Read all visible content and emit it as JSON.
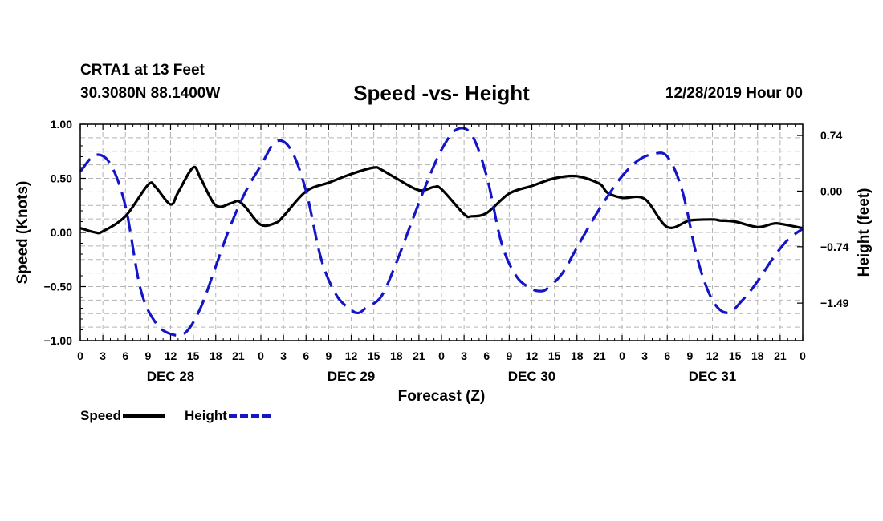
{
  "header": {
    "station": "CRTA1 at 13 Feet",
    "coords": "30.3080N 88.1400W",
    "title": "Speed -vs- Height",
    "run_time": "12/28/2019 Hour 00"
  },
  "legend": {
    "speed_label": "Speed",
    "height_label": "Height"
  },
  "colors": {
    "speed": "#000000",
    "height": "#1515c8",
    "grid": "#b4b4b4"
  },
  "chart_data": {
    "type": "line",
    "title": "Speed -vs- Height",
    "xlabel": "Forecast (Z)",
    "ylabel": "Speed (Knots)",
    "y2label": "Height (feet)",
    "xlim": [
      0,
      96
    ],
    "ylim": [
      -1.0,
      1.0
    ],
    "y2lim": [
      -1.99,
      0.89
    ],
    "grid": true,
    "x_tick_step": 3,
    "x_tick_labels": [
      "0",
      "3",
      "6",
      "9",
      "12",
      "15",
      "18",
      "21",
      "0",
      "3",
      "6",
      "9",
      "12",
      "15",
      "18",
      "21",
      "0",
      "3",
      "6",
      "9",
      "12",
      "15",
      "18",
      "21",
      "0",
      "3",
      "6",
      "9",
      "12",
      "15",
      "18",
      "21",
      "0"
    ],
    "y_ticks": [
      1.0,
      0.5,
      0.0,
      -0.5,
      -1.0
    ],
    "y_tick_labels": [
      "1.00",
      "0.50",
      "0.00",
      "−0.50",
      "−1.00"
    ],
    "y2_ticks": [
      0.74,
      0.0,
      -0.74,
      -1.49
    ],
    "y2_tick_labels": [
      "0.74",
      "0.00",
      "−0.74",
      "−1.49"
    ],
    "day_labels": [
      {
        "hour": 12,
        "label": "DEC 28"
      },
      {
        "hour": 36,
        "label": "DEC 29"
      },
      {
        "hour": 60,
        "label": "DEC 30"
      },
      {
        "hour": 84,
        "label": "DEC 31"
      }
    ],
    "series": [
      {
        "name": "Speed",
        "axis": "left",
        "style": "solid",
        "x": [
          0,
          2,
          3,
          6,
          9,
          10,
          12,
          13,
          15,
          16,
          18,
          20,
          21,
          22,
          24,
          26,
          27,
          30,
          33,
          36,
          39,
          40,
          42,
          45,
          47,
          48,
          51,
          52,
          54,
          57,
          60,
          63,
          66,
          69,
          70,
          72,
          75,
          78,
          81,
          84,
          85,
          87,
          90,
          92,
          93,
          96
        ],
        "y": [
          0.04,
          0.0,
          0.01,
          0.15,
          0.44,
          0.42,
          0.26,
          0.37,
          0.6,
          0.5,
          0.25,
          0.27,
          0.29,
          0.23,
          0.07,
          0.09,
          0.15,
          0.38,
          0.46,
          0.54,
          0.6,
          0.58,
          0.5,
          0.39,
          0.42,
          0.4,
          0.17,
          0.15,
          0.18,
          0.36,
          0.43,
          0.5,
          0.52,
          0.45,
          0.37,
          0.32,
          0.31,
          0.05,
          0.11,
          0.12,
          0.11,
          0.1,
          0.05,
          0.08,
          0.08,
          0.04
        ]
      },
      {
        "name": "Height",
        "axis": "right",
        "style": "dashed",
        "x": [
          0,
          2,
          4,
          6,
          8,
          10,
          12,
          14,
          16,
          18,
          20,
          22,
          24,
          26,
          28,
          30,
          32,
          34,
          36,
          37,
          38,
          40,
          42,
          44,
          46,
          48,
          50,
          52,
          54,
          56,
          58,
          60,
          61,
          62,
          64,
          66,
          68,
          70,
          72,
          74,
          76,
          78,
          80,
          82,
          84,
          86,
          88,
          90,
          92,
          94,
          96
        ],
        "y": [
          0.26,
          0.48,
          0.36,
          -0.2,
          -1.3,
          -1.75,
          -1.9,
          -1.88,
          -1.55,
          -1.0,
          -0.45,
          0.0,
          0.34,
          0.66,
          0.55,
          0.0,
          -0.9,
          -1.38,
          -1.58,
          -1.62,
          -1.55,
          -1.4,
          -0.95,
          -0.42,
          0.1,
          0.55,
          0.82,
          0.75,
          0.2,
          -0.7,
          -1.14,
          -1.3,
          -1.33,
          -1.3,
          -1.1,
          -0.75,
          -0.4,
          -0.08,
          0.2,
          0.4,
          0.49,
          0.46,
          0.0,
          -0.9,
          -1.45,
          -1.62,
          -1.45,
          -1.2,
          -0.9,
          -0.65,
          -0.5
        ]
      }
    ]
  }
}
